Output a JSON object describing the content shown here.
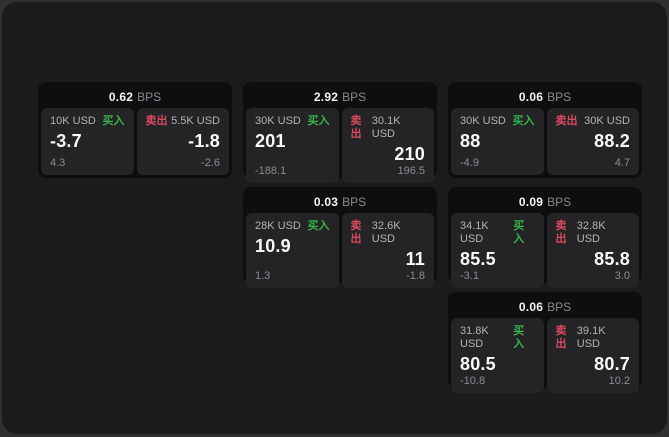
{
  "labels": {
    "buy": "买入",
    "sell": "卖出",
    "bps_unit": "BPS"
  },
  "colors": {
    "buy": "#35b44a",
    "sell": "#d8495f",
    "surface": "#1b1b1d",
    "card_bg": "#0e0e10",
    "panel_bg": "#242427",
    "outer_bg": "#303032"
  },
  "cards": [
    {
      "bps": "0.62",
      "buy": {
        "size": "10K USD",
        "value": "-3.7",
        "sub": "4.3"
      },
      "sell": {
        "size": "5.5K USD",
        "value": "-1.8",
        "sub": "-2.6"
      }
    },
    {
      "bps": "2.92",
      "buy": {
        "size": "30K USD",
        "value": "201",
        "sub": "-188.1"
      },
      "sell": {
        "size": "30.1K USD",
        "value": "210",
        "sub": "196.5"
      }
    },
    {
      "bps": "0.06",
      "buy": {
        "size": "30K USD",
        "value": "88",
        "sub": "-4.9"
      },
      "sell": {
        "size": "30K USD",
        "value": "88.2",
        "sub": "4.7"
      }
    },
    {
      "bps": "0.03",
      "buy": {
        "size": "28K USD",
        "value": "10.9",
        "sub": "1.3"
      },
      "sell": {
        "size": "32.6K USD",
        "value": "11",
        "sub": "-1.8"
      }
    },
    {
      "bps": "0.09",
      "buy": {
        "size": "34.1K USD",
        "value": "85.5",
        "sub": "-3.1"
      },
      "sell": {
        "size": "32.8K USD",
        "value": "85.8",
        "sub": "3.0"
      }
    },
    {
      "bps": "0.06",
      "buy": {
        "size": "31.8K USD",
        "value": "80.5",
        "sub": "-10.8"
      },
      "sell": {
        "size": "39.1K USD",
        "value": "80.7",
        "sub": "10.2"
      }
    }
  ]
}
